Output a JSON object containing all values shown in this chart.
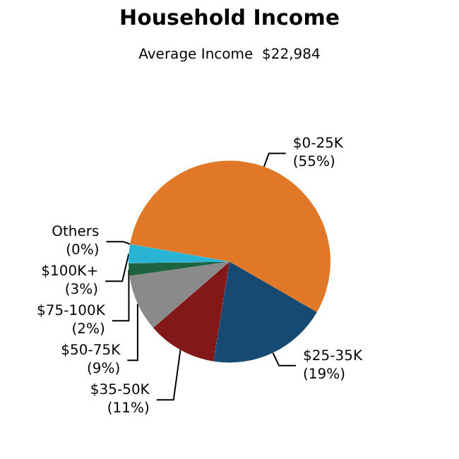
{
  "chart_data": {
    "type": "pie",
    "title": "Household Income",
    "subtitle": "Average Income  $22,984",
    "categories": [
      "$0-25K",
      "$25-35K",
      "$35-50K",
      "$50-75K",
      "$75-100K",
      "$100K+",
      "Others"
    ],
    "values": [
      55,
      19,
      11,
      9,
      2,
      3,
      0
    ],
    "value_labels": [
      "(55%)",
      "(19%)",
      "(11%)",
      "(9%)",
      "(2%)",
      "(3%)",
      "(0%)"
    ],
    "colors": [
      "#e07828",
      "#174a73",
      "#821818",
      "#8a8a8a",
      "#1e6440",
      "#2ab4d4",
      "#66cccc"
    ],
    "legend": false
  }
}
